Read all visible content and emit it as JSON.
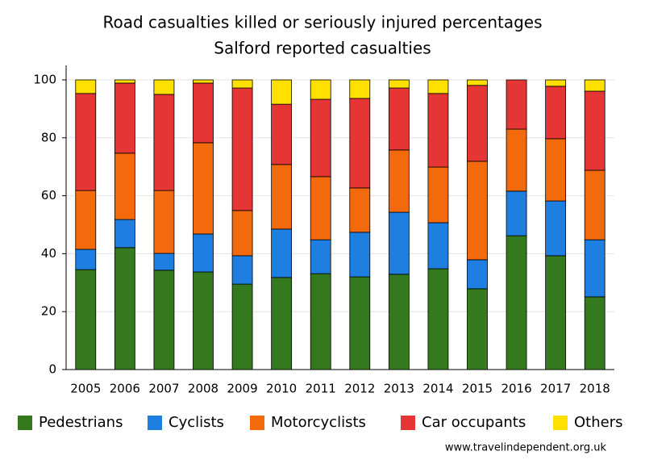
{
  "chart_data": {
    "type": "stacked-bar",
    "title": "Road casualties killed or seriously injured percentages",
    "subtitle": "Salford reported casualties",
    "source": "www.travelindependent.org.uk",
    "categories": [
      "2005",
      "2006",
      "2007",
      "2008",
      "2009",
      "2010",
      "2011",
      "2012",
      "2013",
      "2014",
      "2015",
      "2016",
      "2017",
      "2018"
    ],
    "series": [
      {
        "name": "Pedestrians",
        "color": "#35791f",
        "values": [
          34.5,
          42.1,
          34.3,
          33.7,
          29.5,
          31.8,
          33.1,
          32.0,
          32.9,
          34.8,
          27.9,
          46.2,
          39.3,
          25.1
        ]
      },
      {
        "name": "Cyclists",
        "color": "#1e7fe0",
        "values": [
          7.0,
          9.7,
          5.8,
          13.1,
          9.8,
          16.7,
          11.7,
          15.4,
          21.4,
          15.9,
          10.0,
          15.4,
          18.9,
          19.7
        ]
      },
      {
        "name": "Motorcyclists",
        "color": "#f26a0c",
        "values": [
          20.3,
          22.9,
          21.7,
          31.5,
          15.6,
          22.3,
          21.8,
          15.3,
          21.5,
          19.2,
          34.0,
          21.4,
          21.5,
          24.0
        ]
      },
      {
        "name": "Car occupants",
        "color": "#e53535",
        "values": [
          33.5,
          24.2,
          33.2,
          20.6,
          42.3,
          20.8,
          26.7,
          30.9,
          21.4,
          25.4,
          26.2,
          17.0,
          18.1,
          27.3
        ]
      },
      {
        "name": "Others",
        "color": "#ffe000",
        "values": [
          4.7,
          1.1,
          5.0,
          1.1,
          2.8,
          8.4,
          6.7,
          6.4,
          2.8,
          4.7,
          1.9,
          0,
          2.2,
          3.9
        ]
      }
    ],
    "ylim": [
      0,
      100
    ],
    "yticks": [
      0,
      20,
      40,
      60,
      80,
      100
    ],
    "grid": true,
    "legend": "bottom"
  }
}
